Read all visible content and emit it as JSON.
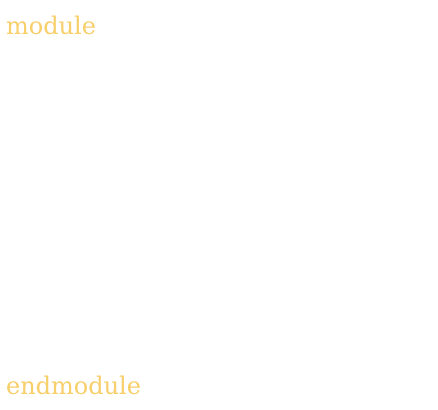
{
  "code": {
    "open_keyword": "module",
    "close_keyword": "endmodule"
  },
  "colors": {
    "keyword": "#f7cf6b",
    "background": "#ffffff"
  }
}
